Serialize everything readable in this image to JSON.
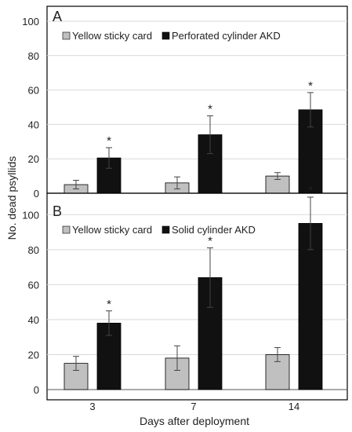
{
  "figure": {
    "ylabel": "No. dead psyllids",
    "xlabel": "Days after deployment"
  },
  "chart_data": [
    {
      "type": "bar",
      "panel_label": "A",
      "categories": [
        "3",
        "7",
        "14"
      ],
      "ylim": [
        0,
        100
      ],
      "yticks": [
        0,
        20,
        40,
        60,
        80,
        100
      ],
      "grid": true,
      "legend_position": "top",
      "series": [
        {
          "name": "Yellow sticky card",
          "color": "#c0c0c0",
          "values": [
            5,
            6,
            10
          ],
          "errors": [
            2.5,
            3.5,
            2
          ]
        },
        {
          "name": "Perforated cylinder AKD",
          "color": "#111111",
          "values": [
            20.5,
            34,
            48.5
          ],
          "errors": [
            6,
            11,
            10
          ]
        }
      ],
      "significance": [
        "*",
        "*",
        "*"
      ]
    },
    {
      "type": "bar",
      "panel_label": "B",
      "categories": [
        "3",
        "7",
        "14"
      ],
      "ylim": [
        0,
        110
      ],
      "yticks": [
        0,
        20,
        40,
        60,
        80,
        100
      ],
      "grid": true,
      "legend_position": "top",
      "series": [
        {
          "name": "Yellow sticky card",
          "color": "#c0c0c0",
          "values": [
            15,
            18,
            20
          ],
          "errors": [
            4,
            7,
            4
          ]
        },
        {
          "name": "Solid cylinder AKD",
          "color": "#111111",
          "values": [
            38,
            64,
            95
          ],
          "errors": [
            7,
            17,
            15
          ]
        }
      ],
      "significance": [
        "*",
        "*",
        "*"
      ]
    }
  ]
}
